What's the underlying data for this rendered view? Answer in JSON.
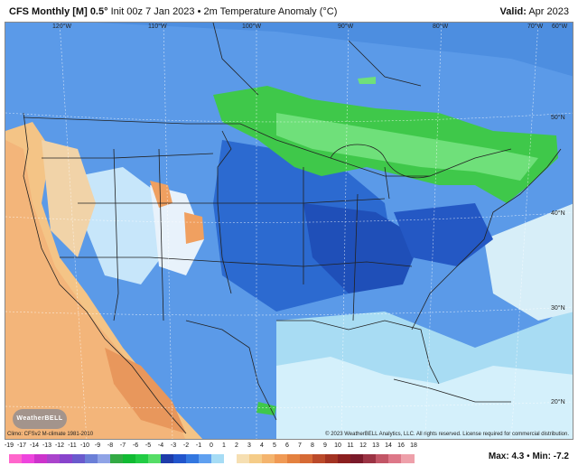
{
  "header": {
    "model": "CFS Monthly [M] 0.5",
    "degree_sign": "°",
    "init": "Init 00z 7 Jan 2023",
    "bullet": "•",
    "field": "2m Temperature Anomaly (°C)",
    "valid_label": "Valid:",
    "valid_value": "Apr 2023"
  },
  "map": {
    "longitudes": [
      "120°W",
      "110°W",
      "100°W",
      "90°W",
      "80°W",
      "70°W",
      "60°W"
    ],
    "latitudes": [
      "50°N",
      "40°N",
      "30°N",
      "20°N"
    ],
    "logo": "WeatherBELL",
    "climo_note": "Climo: CFSv2 M-climate 1981-2010",
    "copyright": "© 2023 WeatherBELL Analytics, LLC. All rights reserved. License required for commercial distribution."
  },
  "legend": {
    "ticks": [
      "-19",
      "-17",
      "-14",
      "-13",
      "-12",
      "-11",
      "-10",
      "-9",
      "-8",
      "-7",
      "-6",
      "-5",
      "-4",
      "-3",
      "-2",
      "-1",
      "0",
      "1",
      "2",
      "3",
      "4",
      "5",
      "6",
      "7",
      "8",
      "9",
      "10",
      "11",
      "12",
      "13",
      "14",
      "16",
      "18"
    ],
    "colors": [
      "#ff66cc",
      "#ee44dd",
      "#cc33cc",
      "#aa44cc",
      "#8844cc",
      "#6a5acd",
      "#6b7fd7",
      "#8fa3e6",
      "#33aa44",
      "#11bb33",
      "#22cc44",
      "#55dd66",
      "#1e3caa",
      "#2255cc",
      "#3377e0",
      "#5fa0f0",
      "#a6dcf5",
      "#ffffff",
      "#f6dfb2",
      "#f5cc88",
      "#f4b46e",
      "#f09a55",
      "#e4813f",
      "#d66a35",
      "#bb4a2a",
      "#a33322",
      "#8b1f1f",
      "#7a1a2a",
      "#9b3344",
      "#c25566",
      "#dd7788",
      "#eea0aa"
    ],
    "stats_max_label": "Max:",
    "stats_max": "4.3",
    "stats_min_label": "Min:",
    "stats_min": "-7.2"
  }
}
